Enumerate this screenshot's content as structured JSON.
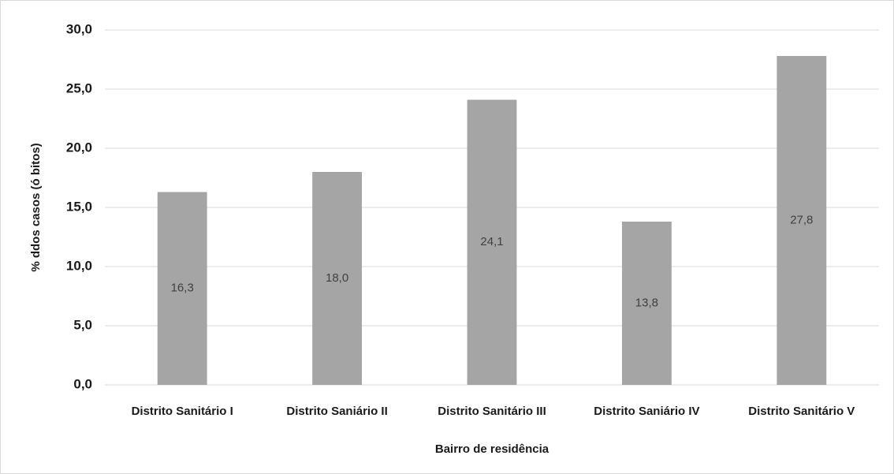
{
  "chart_data": {
    "type": "bar",
    "categories": [
      "Distrito Sanitário I",
      "Distrito Saniário II",
      "Distrito Sanitário III",
      "Distrito Saniário IV",
      "Distrito Sanitário V"
    ],
    "values": [
      16.3,
      18.0,
      24.1,
      13.8,
      27.8
    ],
    "value_labels": [
      "16,3",
      "18,0",
      "24,1",
      "13,8",
      "27,8"
    ],
    "color": "#a5a5a5",
    "ylabel": "% ddos casos (ó bitos)",
    "xlabel": "Bairro de residência",
    "ylim": [
      0,
      30
    ],
    "yticks": [
      {
        "value": 0,
        "label": "0,0"
      },
      {
        "value": 5,
        "label": "5,0"
      },
      {
        "value": 10,
        "label": "10,0"
      },
      {
        "value": 15,
        "label": "15,0"
      },
      {
        "value": 20,
        "label": "20,0"
      },
      {
        "value": 25,
        "label": "25,0"
      },
      {
        "value": 30,
        "label": "30,0"
      }
    ],
    "grid": true
  }
}
